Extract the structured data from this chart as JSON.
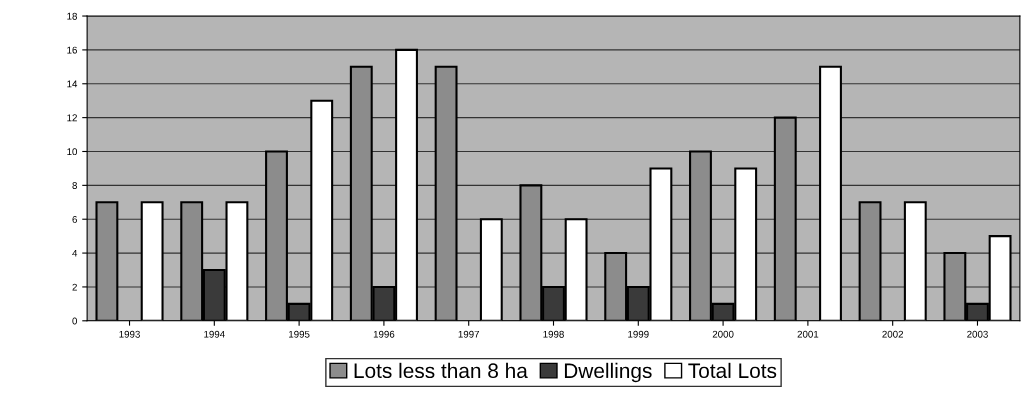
{
  "chart_data": {
    "type": "bar",
    "categories": [
      "1993",
      "1994",
      "1995",
      "1996",
      "1997",
      "1998",
      "1999",
      "2000",
      "2001",
      "2002",
      "2003"
    ],
    "series": [
      {
        "name": "Lots less than 8 ha",
        "color": "#8c8c8c",
        "values": [
          7,
          7,
          10,
          15,
          15,
          8,
          4,
          10,
          12,
          7,
          4
        ]
      },
      {
        "name": "Dwellings",
        "color": "#3a3a3a",
        "values": [
          0,
          3,
          1,
          2,
          0,
          2,
          2,
          1,
          0,
          0,
          1
        ]
      },
      {
        "name": "Total Lots",
        "color": "#ffffff",
        "values": [
          7,
          7,
          13,
          16,
          6,
          6,
          9,
          9,
          15,
          7,
          5
        ]
      }
    ],
    "ylim": [
      0,
      18
    ],
    "yticks": [
      0,
      2,
      4,
      6,
      8,
      10,
      12,
      14,
      16,
      18
    ],
    "grid": "y",
    "legend": "bottom"
  }
}
